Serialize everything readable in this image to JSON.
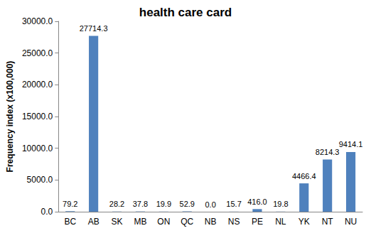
{
  "chart_data": {
    "type": "bar",
    "title": "health care card",
    "y_label": "Frequency index (x100,000)",
    "categories": [
      "BC",
      "AB",
      "SK",
      "MB",
      "ON",
      "QC",
      "NB",
      "NS",
      "PE",
      "NL",
      "YK",
      "NT",
      "NU"
    ],
    "values": [
      79.2,
      27714.3,
      28.2,
      37.8,
      19.9,
      52.9,
      0.0,
      15.7,
      416.0,
      19.8,
      4466.4,
      8214.3,
      9414.1
    ],
    "value_labels": [
      "79.2",
      "27714.3",
      "28.2",
      "37.8",
      "19.9",
      "52.9",
      "0.0",
      "15.7",
      "416.0",
      "19.8",
      "4466.4",
      "8214.3",
      "9414.1"
    ],
    "color": "#4f81bd",
    "ylim": [
      0,
      30000
    ],
    "yticks": [
      {
        "value": 0,
        "label": "0.0"
      },
      {
        "value": 5000,
        "label": "5000.0"
      },
      {
        "value": 10000,
        "label": "10000.0"
      },
      {
        "value": 15000,
        "label": "15000.0"
      },
      {
        "value": 20000,
        "label": "20000.0"
      },
      {
        "value": 25000,
        "label": "25000.0"
      },
      {
        "value": 30000,
        "label": "30000.0"
      }
    ],
    "grid": false,
    "data_labels": true
  }
}
